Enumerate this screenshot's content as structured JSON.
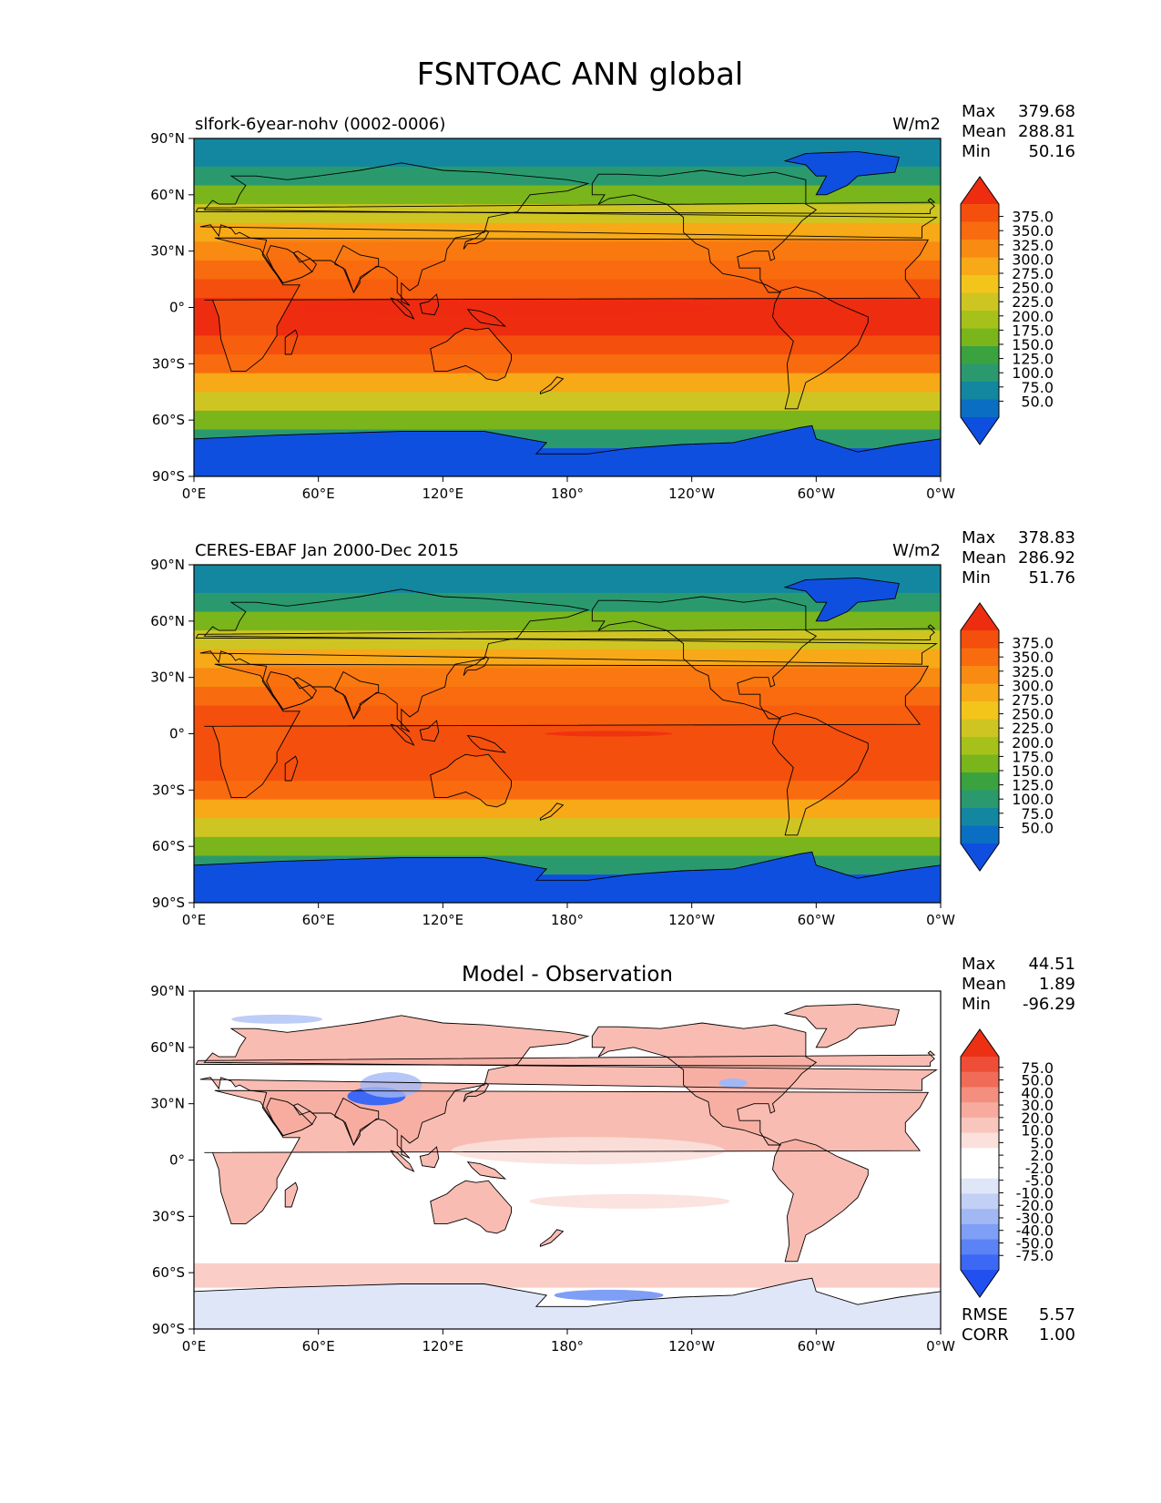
{
  "title": "FSNTOAC ANN global",
  "colors": {
    "abs_levels": [
      "#0f4fe0",
      "#0a6fc2",
      "#1387a0",
      "#2a9a6e",
      "#3aa33f",
      "#7ab51c",
      "#a6c21a",
      "#cfc522",
      "#f3c51b",
      "#f7a917",
      "#f98a12",
      "#f96b0f",
      "#f44f0d",
      "#ee2c10"
    ],
    "diff_levels": [
      "#2250f0",
      "#3d67f5",
      "#5b83f5",
      "#7f9ef6",
      "#a2b8f5",
      "#c2d0f5",
      "#dfe6f8",
      "#ffffff",
      "#ffffff",
      "#fbe0dc",
      "#f9c6bd",
      "#f7ab9f",
      "#f48e7f",
      "#f06c58",
      "#ee4e38",
      "#ec3014"
    ],
    "land": "#000000"
  },
  "chart_data": [
    {
      "type": "heatmap",
      "panel": "test",
      "left_title": "slfork-6year-nohv (0002-0006)",
      "units": "W/m2",
      "stats": [
        {
          "label": "Max",
          "value": "379.68"
        },
        {
          "label": "Mean",
          "value": "288.81"
        },
        {
          "label": "Min",
          "value": "50.16"
        }
      ],
      "colorbar_ticks": [
        "375.0",
        "350.0",
        "325.0",
        "300.0",
        "275.0",
        "250.0",
        "225.0",
        "200.0",
        "175.0",
        "150.0",
        "125.0",
        "100.0",
        "75.0",
        "50.0"
      ],
      "lat_ticks": [
        "90°N",
        "60°N",
        "30°N",
        "0°",
        "30°S",
        "60°S",
        "90°S"
      ],
      "lon_ticks": [
        "0°E",
        "60°E",
        "120°E",
        "180°",
        "120°W",
        "60°W",
        "0°W"
      ],
      "zonal_profile": [
        {
          "lat": 90,
          "level": 2
        },
        {
          "lat": 75,
          "level": 3
        },
        {
          "lat": 65,
          "level": 5
        },
        {
          "lat": 55,
          "level": 7
        },
        {
          "lat": 45,
          "level": 9
        },
        {
          "lat": 35,
          "level": 10
        },
        {
          "lat": 25,
          "level": 11
        },
        {
          "lat": 15,
          "level": 12
        },
        {
          "lat": 5,
          "level": 13
        },
        {
          "lat": -5,
          "level": 13
        },
        {
          "lat": -15,
          "level": 12
        },
        {
          "lat": -25,
          "level": 11
        },
        {
          "lat": -35,
          "level": 9
        },
        {
          "lat": -45,
          "level": 7
        },
        {
          "lat": -55,
          "level": 5
        },
        {
          "lat": -65,
          "level": 3
        },
        {
          "lat": -75,
          "level": 0
        },
        {
          "lat": -90,
          "level": 0
        }
      ]
    },
    {
      "type": "heatmap",
      "panel": "reference",
      "left_title": "CERES-EBAF Jan 2000-Dec 2015",
      "units": "W/m2",
      "stats": [
        {
          "label": "Max",
          "value": "378.83"
        },
        {
          "label": "Mean",
          "value": "286.92"
        },
        {
          "label": "Min",
          "value": "51.76"
        }
      ],
      "colorbar_ticks": [
        "375.0",
        "350.0",
        "325.0",
        "300.0",
        "275.0",
        "250.0",
        "225.0",
        "200.0",
        "175.0",
        "150.0",
        "125.0",
        "100.0",
        "75.0",
        "50.0"
      ],
      "lat_ticks": [
        "90°N",
        "60°N",
        "30°N",
        "0°",
        "30°S",
        "60°S",
        "90°S"
      ],
      "lon_ticks": [
        "0°E",
        "60°E",
        "120°E",
        "180°",
        "120°W",
        "60°W",
        "0°W"
      ],
      "zonal_profile": [
        {
          "lat": 90,
          "level": 2
        },
        {
          "lat": 75,
          "level": 3
        },
        {
          "lat": 65,
          "level": 5
        },
        {
          "lat": 55,
          "level": 7
        },
        {
          "lat": 45,
          "level": 9
        },
        {
          "lat": 35,
          "level": 10
        },
        {
          "lat": 25,
          "level": 11
        },
        {
          "lat": 15,
          "level": 12
        },
        {
          "lat": 5,
          "level": 12
        },
        {
          "lat": -5,
          "level": 12
        },
        {
          "lat": -15,
          "level": 12
        },
        {
          "lat": -25,
          "level": 11
        },
        {
          "lat": -35,
          "level": 9
        },
        {
          "lat": -45,
          "level": 7
        },
        {
          "lat": -55,
          "level": 5
        },
        {
          "lat": -65,
          "level": 3
        },
        {
          "lat": -75,
          "level": 0
        },
        {
          "lat": -90,
          "level": 0
        }
      ]
    },
    {
      "type": "heatmap",
      "panel": "difference",
      "center_title": "Model - Observation",
      "stats": [
        {
          "label": "Max",
          "value": "44.51"
        },
        {
          "label": "Mean",
          "value": "1.89"
        },
        {
          "label": "Min",
          "value": "-96.29"
        }
      ],
      "colorbar_ticks": [
        "75.0",
        "50.0",
        "40.0",
        "30.0",
        "20.0",
        "10.0",
        "5.0",
        "2.0",
        "-2.0",
        "-5.0",
        "-10.0",
        "-20.0",
        "-30.0",
        "-40.0",
        "-50.0",
        "-75.0"
      ],
      "metrics": [
        {
          "label": "RMSE",
          "value": "5.57"
        },
        {
          "label": "CORR",
          "value": "1.00"
        }
      ],
      "lat_ticks": [
        "90°N",
        "60°N",
        "30°N",
        "0°",
        "30°S",
        "60°S",
        "90°S"
      ],
      "lon_ticks": [
        "0°E",
        "60°E",
        "120°E",
        "180°",
        "120°W",
        "60°W",
        "0°W"
      ]
    }
  ]
}
